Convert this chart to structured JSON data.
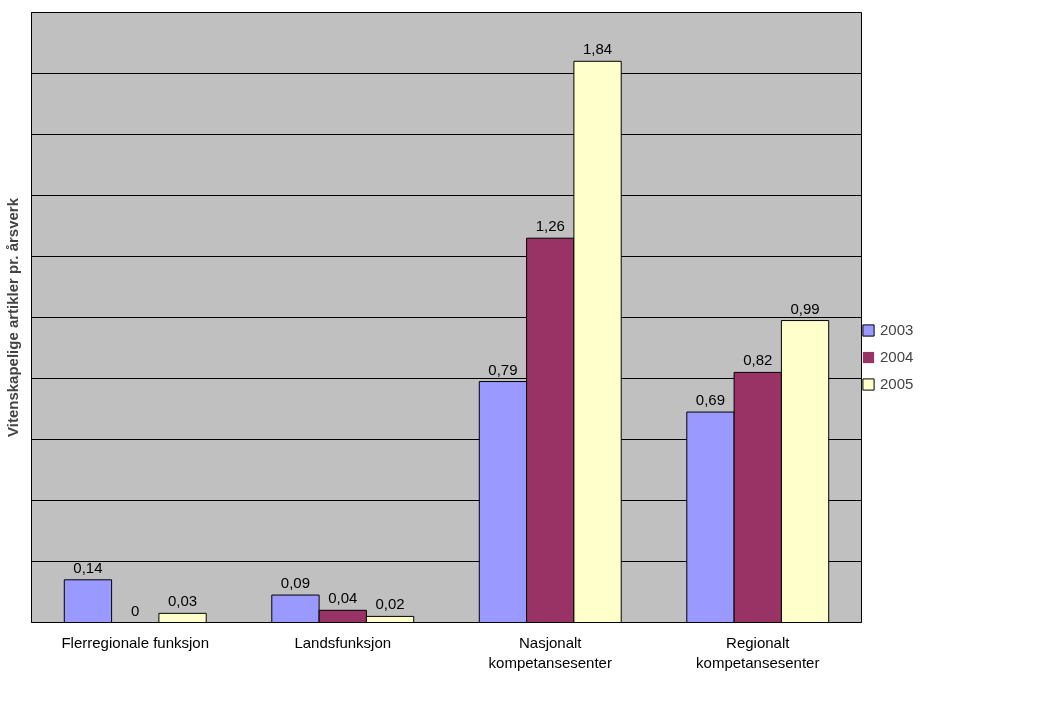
{
  "chart_data": {
    "type": "bar",
    "ylabel": "Vitenskapelige artikler pr. årsverk",
    "categories": [
      "Flerregionale funksjon",
      "Landsfunksjon",
      "Nasjonalt\nkompetansesenter",
      "Regionalt\nkompetansesenter"
    ],
    "series": [
      {
        "name": "2003",
        "color": "#9999ff",
        "values": [
          0.14,
          0.09,
          0.79,
          0.69
        ],
        "value_labels": [
          "0,14",
          "0,09",
          "0,79",
          "0,69"
        ]
      },
      {
        "name": "2004",
        "color": "#993366",
        "values": [
          0,
          0.04,
          1.26,
          0.82
        ],
        "value_labels": [
          "0",
          "0,04",
          "1,26",
          "0,82"
        ]
      },
      {
        "name": "2005",
        "color": "#ffffcc",
        "values": [
          0.03,
          0.02,
          1.84,
          0.99
        ],
        "value_labels": [
          "0,03",
          "0,02",
          "1,84",
          "0,99"
        ]
      }
    ],
    "ylim": [
      0,
      2
    ],
    "yticks": [
      {
        "value": 0,
        "label": null
      },
      {
        "value": 0.2,
        "label": null
      },
      {
        "value": 0.4,
        "label": null
      },
      {
        "value": 0.6,
        "label": null
      },
      {
        "value": 0.8,
        "label": null
      },
      {
        "value": 1.0,
        "label": null
      },
      {
        "value": 1.2,
        "label": null
      },
      {
        "value": 1.4,
        "label": null
      },
      {
        "value": 1.6,
        "label": null
      },
      {
        "value": 1.8,
        "label": null
      },
      {
        "value": 2.0,
        "label": null
      }
    ],
    "tick_labels": "x",
    "grid": "y",
    "legend": "right"
  }
}
